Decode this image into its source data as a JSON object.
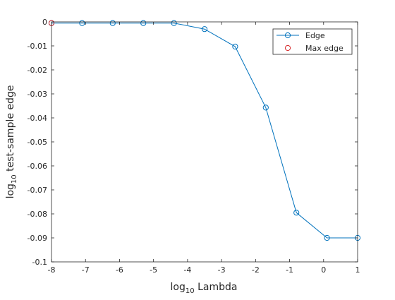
{
  "chart_data": {
    "type": "line",
    "title": "",
    "xlabel": {
      "base": "log",
      "sub": "10",
      "rest": " Lambda"
    },
    "ylabel": {
      "base": "log",
      "sub": "10",
      "rest": " test-sample edge"
    },
    "xlim": [
      -8,
      1
    ],
    "ylim": [
      -0.1,
      0
    ],
    "xticks": [
      -8,
      -7,
      -6,
      -5,
      -4,
      -3,
      -2,
      -1,
      0,
      1
    ],
    "xtick_labels": [
      "-8",
      "-7",
      "-6",
      "-5",
      "-4",
      "-3",
      "-2",
      "-1",
      "0",
      "1"
    ],
    "yticks": [
      0,
      -0.01,
      -0.02,
      -0.03,
      -0.04,
      -0.05,
      -0.06,
      -0.07,
      -0.08,
      -0.09,
      -0.1
    ],
    "ytick_labels": [
      "0",
      "-0.01",
      "-0.02",
      "-0.03",
      "-0.04",
      "-0.05",
      "-0.06",
      "-0.07",
      "-0.08",
      "-0.09",
      "-0.1"
    ],
    "grid": false,
    "legend_position": "top-right",
    "series": [
      {
        "name": "Edge",
        "color": "#0072BD",
        "marker": "circle",
        "x": [
          -8,
          -7.1,
          -6.2,
          -5.3,
          -4.4,
          -3.5,
          -2.6,
          -1.7,
          -0.8,
          0.1,
          1
        ],
        "y": [
          -0.0005,
          -0.0005,
          -0.0005,
          -0.0005,
          -0.0005,
          -0.003,
          -0.0103,
          -0.0357,
          -0.0795,
          -0.09,
          -0.09
        ]
      },
      {
        "name": "Max edge",
        "color": "#D62728",
        "marker": "circle",
        "x": [
          -8
        ],
        "y": [
          -0.0005
        ]
      }
    ]
  }
}
